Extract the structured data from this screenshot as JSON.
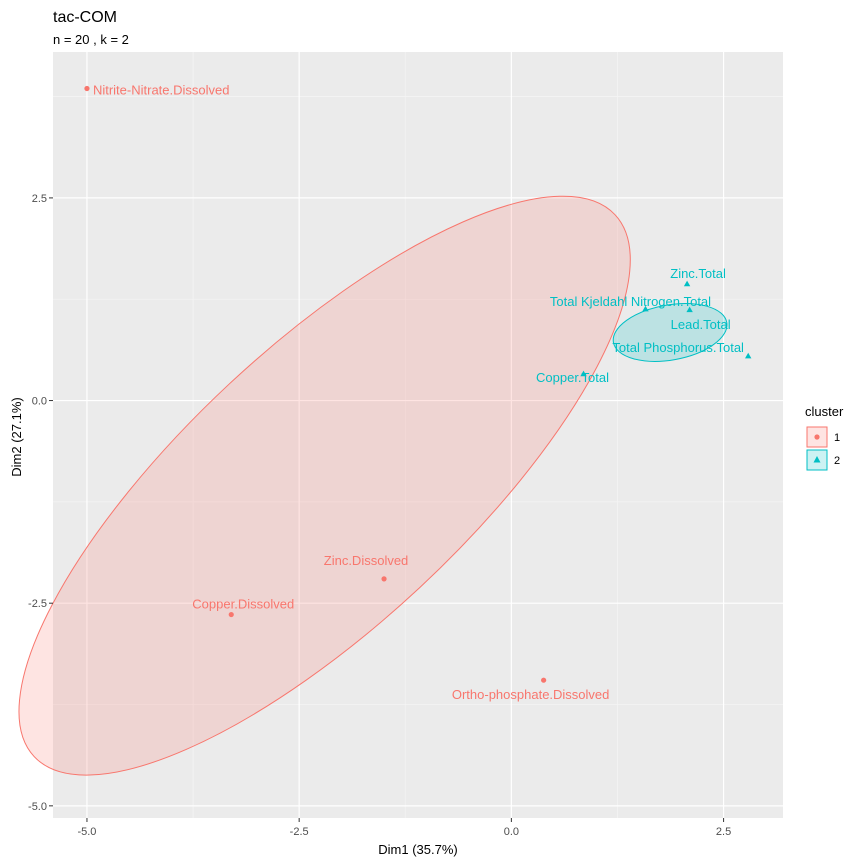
{
  "chart_data": {
    "type": "scatter",
    "title": "tac-COM",
    "subtitle": "n = 20 , k =  2",
    "xlabel": "Dim1 (35.7%)",
    "ylabel": "Dim2 (27.1%)",
    "xlim": [
      -5.4,
      3.2
    ],
    "ylim": [
      -5.15,
      4.3
    ],
    "x_ticks": [
      -5.0,
      -2.5,
      0.0,
      2.5
    ],
    "x_tick_labels": [
      "-5.0",
      "-2.5",
      "0.0",
      "2.5"
    ],
    "y_ticks": [
      2.5,
      0.0,
      -2.5,
      -5.0
    ],
    "y_tick_labels": [
      "2.5",
      "0.0",
      "-2.5",
      "-5.0"
    ],
    "grid": true,
    "legend": {
      "title": "cluster",
      "position": "right",
      "entries": [
        {
          "label": "1",
          "color": "#F8766D",
          "shape": "circle"
        },
        {
          "label": "2",
          "color": "#00BFC4",
          "shape": "triangle"
        }
      ]
    },
    "series": [
      {
        "name": "1",
        "color": "#F8766D",
        "shape": "circle",
        "points": [
          {
            "x": -5.0,
            "y": 3.85,
            "label": "Nitrite-Nitrate.Dissolved"
          },
          {
            "x": -1.5,
            "y": -2.2,
            "label": "Zinc.Dissolved"
          },
          {
            "x": -3.3,
            "y": -2.64,
            "label": "Copper.Dissolved"
          },
          {
            "x": 0.38,
            "y": -3.45,
            "label": "Ortho-phosphate.Dissolved"
          }
        ],
        "ellipse": {
          "cx": -2.2,
          "cy": -1.05,
          "rx": 4.9,
          "ry": 1.72,
          "angle_deg": 43
        }
      },
      {
        "name": "2",
        "color": "#00BFC4",
        "shape": "triangle",
        "points": [
          {
            "x": 2.07,
            "y": 1.44,
            "label": "Zinc.Total"
          },
          {
            "x": 1.58,
            "y": 1.13,
            "label": "Total Kjeldahl Nitrogen.Total"
          },
          {
            "x": 2.1,
            "y": 1.12,
            "label": "Lead.Total"
          },
          {
            "x": 2.79,
            "y": 0.55,
            "label": "Total Phosphorus.Total"
          },
          {
            "x": 0.85,
            "y": 0.33,
            "label": "Copper.Total"
          }
        ],
        "ellipse": {
          "cx": 1.87,
          "cy": 0.84,
          "rx": 0.71,
          "ry": 0.34,
          "angle_deg": 10
        }
      }
    ]
  }
}
